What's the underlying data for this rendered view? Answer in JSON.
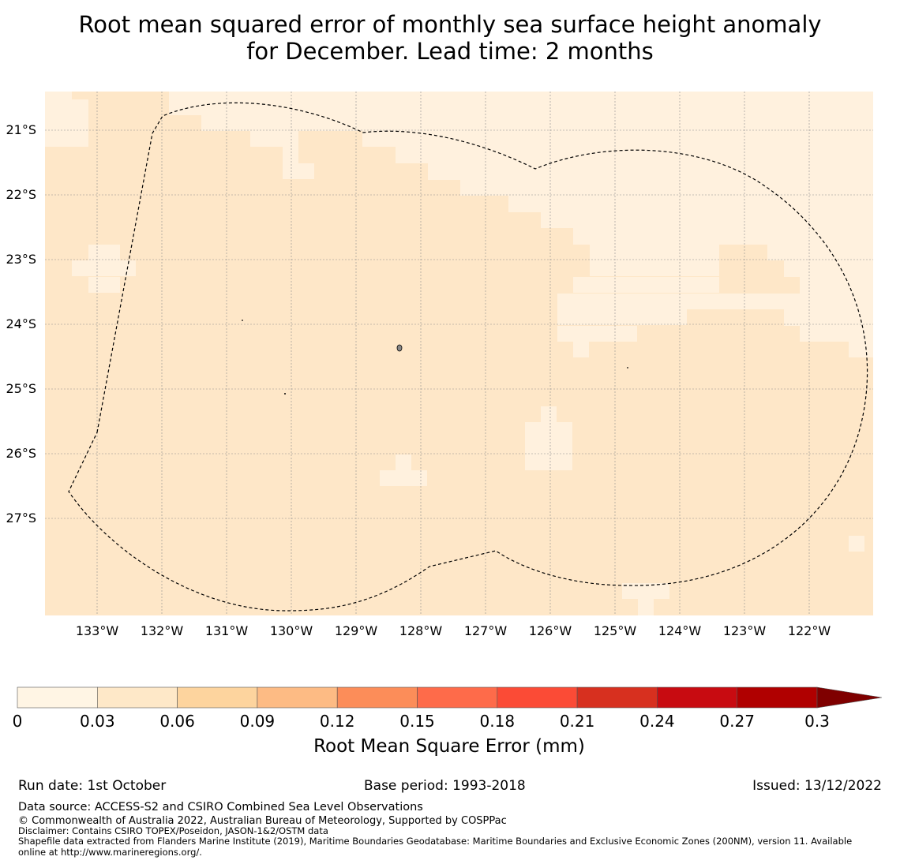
{
  "title": {
    "line1": "Root mean squared error of monthly sea surface height anomaly",
    "line2": "for December. Lead time: 2 months"
  },
  "map": {
    "lat_labels": [
      "21°S",
      "22°S",
      "23°S",
      "24°S",
      "25°S",
      "26°S",
      "27°S"
    ],
    "lon_labels": [
      "133°W",
      "132°W",
      "131°W",
      "130°W",
      "129°W",
      "128°W",
      "127°W",
      "126°W",
      "125°W",
      "124°W",
      "123°W",
      "122°W"
    ],
    "fill_colors": {
      "bin_0_003": "#fff1de",
      "bin_003_006": "#fee7c8"
    }
  },
  "colorbar": {
    "ticks": [
      "0",
      "0.03",
      "0.06",
      "0.09",
      "0.12",
      "0.15",
      "0.18",
      "0.21",
      "0.24",
      "0.27",
      "0.3"
    ],
    "colors": [
      "#fff5e4",
      "#fee8c8",
      "#fdd49e",
      "#fdbb84",
      "#fc8d59",
      "#fe6b4a",
      "#fb4b36",
      "#d7301f",
      "#c80b11",
      "#b00000",
      "#7f0000"
    ],
    "label": "Root Mean Square Error (mm)"
  },
  "footer": {
    "run_date": "Run date: 1st October",
    "base_period": "Base period: 1993-2018",
    "issued": "Issued: 13/12/2022",
    "data_source": "Data source: ACCESS-S2 and CSIRO Combined Sea Level Observations",
    "copyright": "© Commonwealth of Australia 2022, Australian Bureau of Meteorology, Supported by COSPPac",
    "disclaimer": "Disclaimer: Contains CSIRO TOPEX/Poseidon, JASON-1&2/OSTM data",
    "shapefile1": "Shapefile data extracted from Flanders Marine Institute (2019), Maritime Boundaries Geodatabase: Maritime Boundaries and Exclusive Economic Zones (200NM), version 11. Available",
    "shapefile2": "online at http://www.marineregions.org/."
  }
}
